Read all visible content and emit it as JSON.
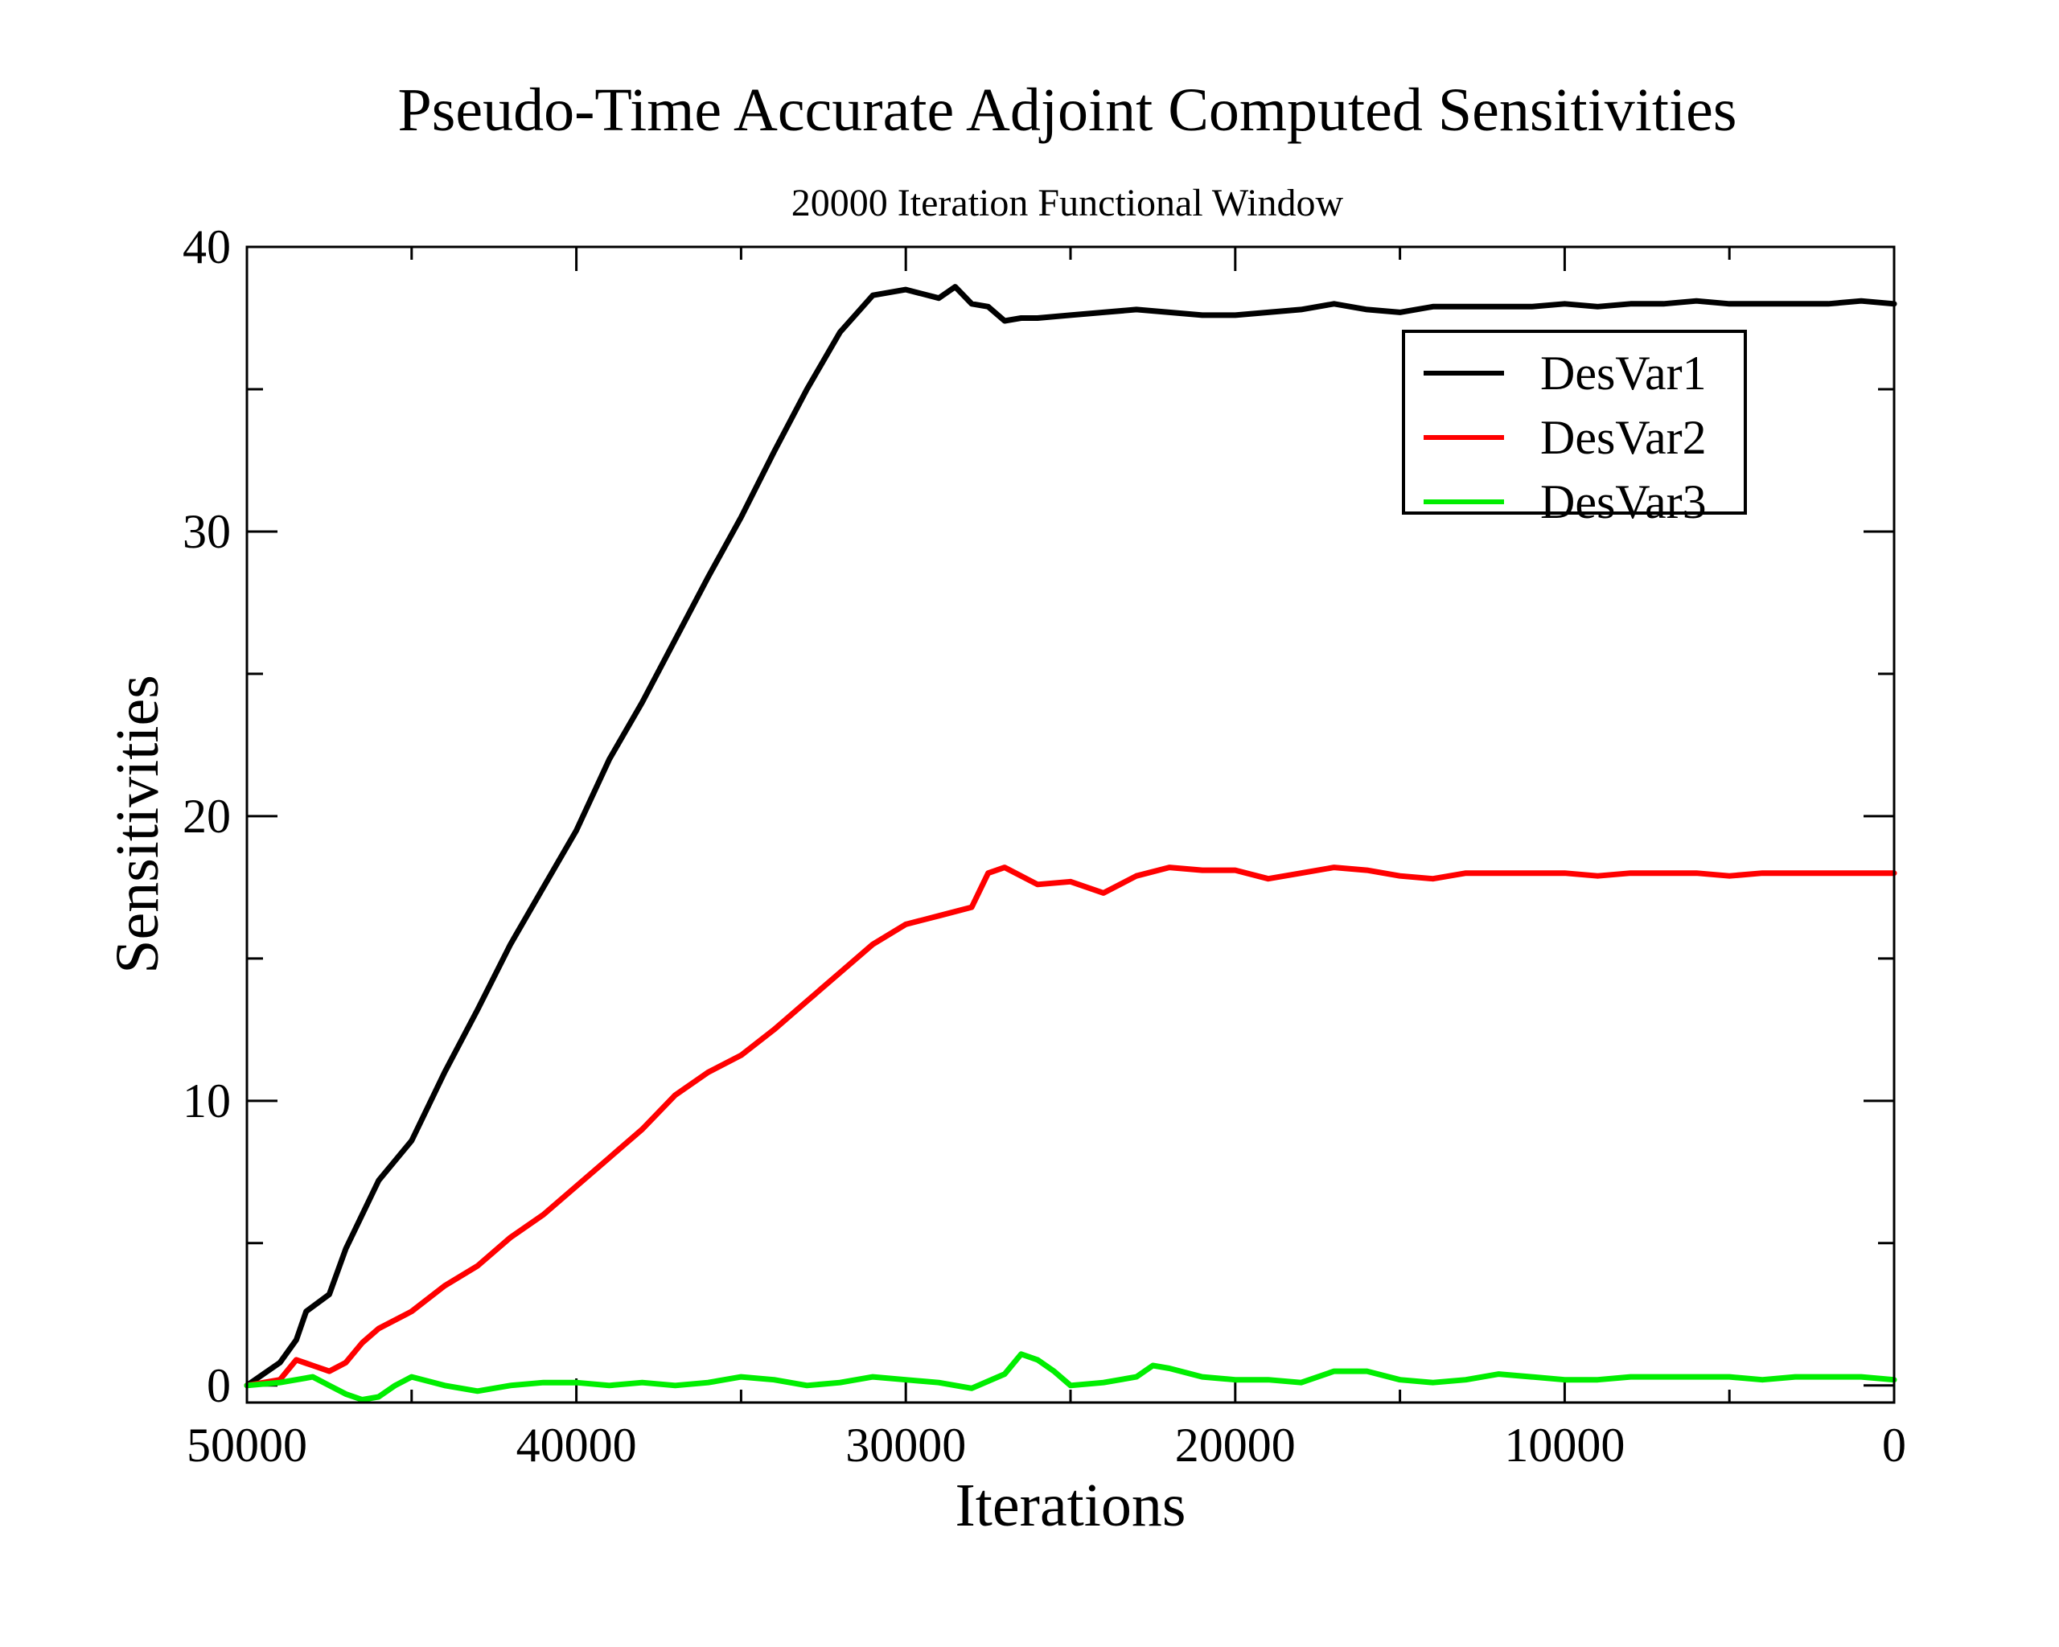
{
  "chart_data": {
    "type": "line",
    "title": "Pseudo-Time Accurate  Adjoint Computed Sensitivities",
    "subtitle": "20000 Iteration Functional Window",
    "xlabel": "Iterations",
    "ylabel": "Sensitivities",
    "xlim": [
      50000,
      0
    ],
    "ylim": [
      -0.6,
      40
    ],
    "x_reversed": true,
    "xticks": [
      50000,
      40000,
      30000,
      20000,
      10000,
      0
    ],
    "xtick_labels": [
      "50000",
      "40000",
      "30000",
      "20000",
      "10000",
      "0"
    ],
    "yticks": [
      0,
      10,
      20,
      30,
      40
    ],
    "ytick_labels": [
      "0",
      "10",
      "20",
      "30",
      "40"
    ],
    "legend_position": "top-right",
    "grid": false,
    "series": [
      {
        "name": "DesVar1",
        "color": "#000000",
        "x": [
          50000,
          49000,
          48500,
          48200,
          47500,
          47000,
          46000,
          45000,
          44000,
          43000,
          42000,
          41000,
          40000,
          39000,
          38000,
          37000,
          36000,
          35000,
          34000,
          33000,
          32000,
          31000,
          30000,
          29000,
          28500,
          28000,
          27500,
          27000,
          26500,
          26000,
          25000,
          24000,
          23000,
          22000,
          21000,
          20000,
          19000,
          18000,
          17000,
          16000,
          15000,
          14000,
          13000,
          12000,
          11000,
          10000,
          9000,
          8000,
          7000,
          6000,
          5000,
          4000,
          3000,
          2000,
          1000,
          0
        ],
        "y": [
          0.0,
          0.8,
          1.6,
          2.6,
          3.2,
          4.8,
          7.2,
          8.6,
          11.0,
          13.2,
          15.5,
          17.5,
          19.5,
          22.0,
          24.0,
          26.2,
          28.4,
          30.5,
          32.8,
          35.0,
          37.0,
          38.3,
          38.5,
          38.2,
          38.6,
          38.0,
          37.9,
          37.4,
          37.5,
          37.5,
          37.6,
          37.7,
          37.8,
          37.7,
          37.6,
          37.6,
          37.7,
          37.8,
          38.0,
          37.8,
          37.7,
          37.9,
          37.9,
          37.9,
          37.9,
          38.0,
          37.9,
          38.0,
          38.0,
          38.1,
          38.0,
          38.0,
          38.0,
          38.0,
          38.1,
          38.0
        ]
      },
      {
        "name": "DesVar2",
        "color": "#ff0000",
        "x": [
          50000,
          49000,
          48500,
          48000,
          47500,
          47000,
          46500,
          46000,
          45000,
          44000,
          43000,
          42000,
          41000,
          40000,
          39000,
          38000,
          37000,
          36000,
          35000,
          34000,
          33000,
          32000,
          31000,
          30000,
          29000,
          28000,
          27500,
          27000,
          26000,
          25000,
          24000,
          23000,
          22000,
          21000,
          20000,
          19000,
          18000,
          17000,
          16000,
          15000,
          14000,
          13000,
          12000,
          11000,
          10000,
          9000,
          8000,
          7000,
          6000,
          5000,
          4000,
          3000,
          2000,
          1000,
          0
        ],
        "y": [
          0.0,
          0.2,
          0.9,
          0.7,
          0.5,
          0.8,
          1.5,
          2.0,
          2.6,
          3.5,
          4.2,
          5.2,
          6.0,
          7.0,
          8.0,
          9.0,
          10.2,
          11.0,
          11.6,
          12.5,
          13.5,
          14.5,
          15.5,
          16.2,
          16.5,
          16.8,
          18.0,
          18.2,
          17.6,
          17.7,
          17.3,
          17.9,
          18.2,
          18.1,
          18.1,
          17.8,
          18.0,
          18.2,
          18.1,
          17.9,
          17.8,
          18.0,
          18.0,
          18.0,
          18.0,
          17.9,
          18.0,
          18.0,
          18.0,
          17.9,
          18.0,
          18.0,
          18.0,
          18.0,
          18.0
        ]
      },
      {
        "name": "DesVar3",
        "color": "#00ee00",
        "x": [
          50000,
          49000,
          48000,
          47500,
          47000,
          46500,
          46000,
          45500,
          45000,
          44000,
          43000,
          42000,
          41000,
          40000,
          39000,
          38000,
          37000,
          36000,
          35000,
          34000,
          33000,
          32000,
          31000,
          30000,
          29000,
          28000,
          27000,
          26500,
          26000,
          25500,
          25000,
          24000,
          23000,
          22500,
          22000,
          21000,
          20000,
          19000,
          18000,
          17000,
          16000,
          15000,
          14000,
          13000,
          12000,
          11000,
          10000,
          9000,
          8000,
          7000,
          6000,
          5000,
          4000,
          3000,
          2000,
          1000,
          0
        ],
        "y": [
          0.0,
          0.1,
          0.3,
          0.0,
          -0.3,
          -0.5,
          -0.4,
          0.0,
          0.3,
          0.0,
          -0.2,
          0.0,
          0.1,
          0.1,
          0.0,
          0.1,
          0.0,
          0.1,
          0.3,
          0.2,
          0.0,
          0.1,
          0.3,
          0.2,
          0.1,
          -0.1,
          0.4,
          1.1,
          0.9,
          0.5,
          0.0,
          0.1,
          0.3,
          0.7,
          0.6,
          0.3,
          0.2,
          0.2,
          0.1,
          0.5,
          0.5,
          0.2,
          0.1,
          0.2,
          0.4,
          0.3,
          0.2,
          0.2,
          0.3,
          0.3,
          0.3,
          0.3,
          0.2,
          0.3,
          0.3,
          0.3,
          0.2
        ]
      }
    ]
  }
}
